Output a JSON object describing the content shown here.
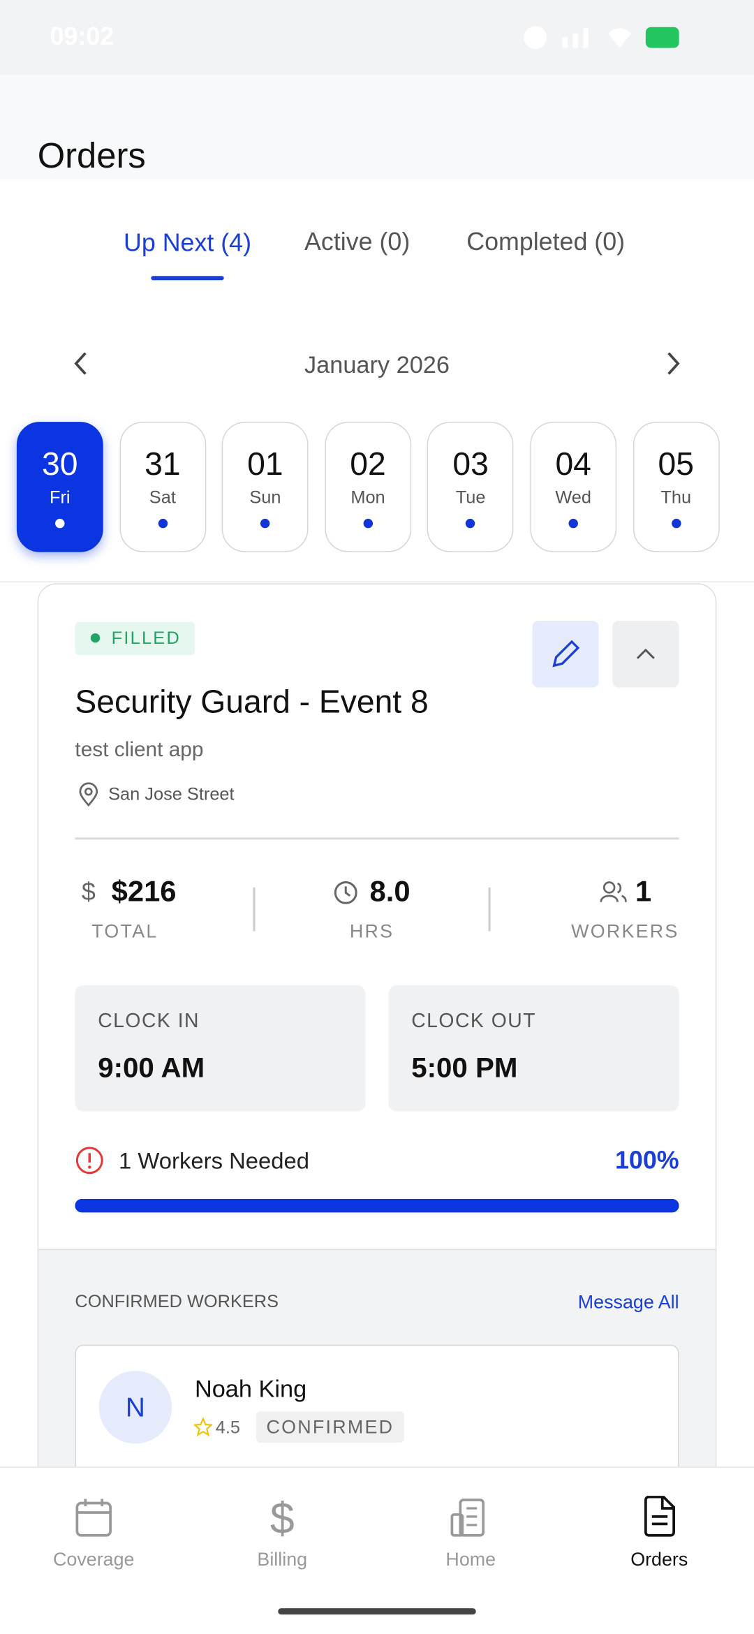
{
  "status_bar": {
    "time": "09:02"
  },
  "header": {
    "title": "Orders"
  },
  "tabs": [
    "Up Next (4)",
    "Active (0)",
    "Completed (0)"
  ],
  "calendar": {
    "month": "January 2026",
    "days": [
      {
        "day": "30",
        "weekday": "Fri"
      },
      {
        "day": "31",
        "weekday": "Sat"
      },
      {
        "day": "01",
        "weekday": "Sun"
      },
      {
        "day": "02",
        "weekday": "Mon"
      },
      {
        "day": "03",
        "weekday": "Tue"
      },
      {
        "day": "04",
        "weekday": "Wed"
      },
      {
        "day": "05",
        "weekday": "Thu"
      }
    ]
  },
  "order": {
    "status": "FILLED",
    "title": "Security Guard - Event 8",
    "client": "test client app",
    "location": "San Jose Street",
    "stats": [
      {
        "value": "$216",
        "label": "TOTAL"
      },
      {
        "value": "8.0",
        "label": "HRS"
      },
      {
        "value": "1",
        "label": "WORKERS"
      }
    ],
    "clock_in": {
      "label": "CLOCK IN",
      "time": "9:00 AM"
    },
    "clock_out": {
      "label": "CLOCK OUT",
      "time": "5:00 PM"
    },
    "needed": "1 Workers Needed",
    "percent": "100%"
  },
  "confirmed_workers": {
    "title": "CONFIRMED WORKERS",
    "action": "Message All",
    "workers": [
      {
        "initial": "N",
        "name": "Noah King",
        "rating": "4.5",
        "status": "CONFIRMED"
      }
    ]
  },
  "nav": [
    "Coverage",
    "Billing",
    "Home",
    "Orders"
  ]
}
